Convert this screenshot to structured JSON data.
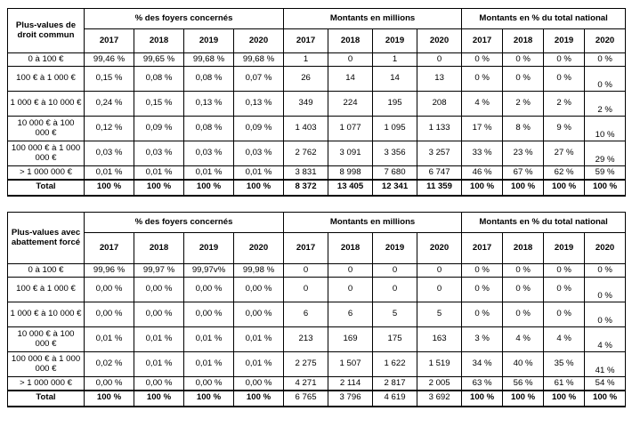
{
  "table1": {
    "corner": "Plus-values de droit commun",
    "groups": [
      "% des foyers concernés",
      "Montants en millions",
      "Montants en % du total national"
    ],
    "years": [
      "2017",
      "2018",
      "2019",
      "2020"
    ],
    "rows": [
      {
        "label": "0 à 100 €",
        "pct": [
          "99,46 %",
          "99,65 %",
          "99,68 %",
          "99,68 %"
        ],
        "mnt": [
          "1",
          "0",
          "1",
          "0"
        ],
        "nat": [
          "0 %",
          "0 %",
          "0 %",
          "0 %"
        ]
      },
      {
        "label": "100 € à 1 000 €",
        "pct": [
          "0,15 %",
          "0,08 %",
          "0,08 %",
          "0,07 %"
        ],
        "mnt": [
          "26",
          "14",
          "14",
          "13"
        ],
        "nat": [
          "0 %",
          "0 %",
          "0 %",
          "0 %"
        ]
      },
      {
        "label": "1 000 € à 10 000 €",
        "pct": [
          "0,24 %",
          "0,15 %",
          "0,13 %",
          "0,13 %"
        ],
        "mnt": [
          "349",
          "224",
          "195",
          "208"
        ],
        "nat": [
          "4 %",
          "2 %",
          "2 %",
          "2 %"
        ]
      },
      {
        "label": "10 000 € à 100 000 €",
        "pct": [
          "0,12 %",
          "0,09 %",
          "0,08 %",
          "0,09 %"
        ],
        "mnt": [
          "1 403",
          "1 077",
          "1 095",
          "1 133"
        ],
        "nat": [
          "17 %",
          "8 %",
          "9 %",
          "10 %"
        ]
      },
      {
        "label": "100 000 € à 1 000 000 €",
        "pct": [
          "0,03 %",
          "0,03 %",
          "0,03 %",
          "0,03 %"
        ],
        "mnt": [
          "2 762",
          "3 091",
          "3 356",
          "3 257"
        ],
        "nat": [
          "33 %",
          "23 %",
          "27 %",
          "29 %"
        ]
      },
      {
        "label": "> 1 000 000 €",
        "pct": [
          "0,01 %",
          "0,01 %",
          "0,01 %",
          "0,01 %"
        ],
        "mnt": [
          "3 831",
          "8 998",
          "7 680",
          "6 747"
        ],
        "nat": [
          "46 %",
          "67 %",
          "62 %",
          "59 %"
        ]
      }
    ],
    "total": {
      "label": "Total",
      "pct": [
        "100 %",
        "100 %",
        "100 %",
        "100 %"
      ],
      "mnt": [
        "8 372",
        "13 405",
        "12 341",
        "11 359"
      ],
      "nat": [
        "100 %",
        "100 %",
        "100 %",
        "100 %"
      ]
    }
  },
  "table2": {
    "corner": "Plus-values avec abattement forcé",
    "groups": [
      "% des foyers concernés",
      "Montants en millions",
      "Montants en % du total national"
    ],
    "years": [
      "2017",
      "2018",
      "2019",
      "2020"
    ],
    "rows": [
      {
        "label": "0 à 100 €",
        "pct": [
          "99,96 %",
          "99,97 %",
          "99,97v%",
          "99,98 %"
        ],
        "mnt": [
          "0",
          "0",
          "0",
          "0"
        ],
        "nat": [
          "0 %",
          "0 %",
          "0 %",
          "0 %"
        ]
      },
      {
        "label": "100 € à 1 000 €",
        "pct": [
          "0,00 %",
          "0,00 %",
          "0,00 %",
          "0,00 %"
        ],
        "mnt": [
          "0",
          "0",
          "0",
          "0"
        ],
        "nat": [
          "0 %",
          "0 %",
          "0 %",
          "0 %"
        ]
      },
      {
        "label": "1 000 € à 10 000 €",
        "pct": [
          "0,00 %",
          "0,00 %",
          "0,00 %",
          "0,00 %"
        ],
        "mnt": [
          "6",
          "6",
          "5",
          "5"
        ],
        "nat": [
          "0 %",
          "0 %",
          "0 %",
          "0 %"
        ]
      },
      {
        "label": "10 000 € à 100 000 €",
        "pct": [
          "0,01 %",
          "0,01 %",
          "0,01 %",
          "0,01 %"
        ],
        "mnt": [
          "213",
          "169",
          "175",
          "163"
        ],
        "nat": [
          "3 %",
          "4 %",
          "4 %",
          "4 %"
        ]
      },
      {
        "label": "100 000 € à 1 000 000 €",
        "pct": [
          "0,02 %",
          "0,01 %",
          "0,01 %",
          "0,01 %"
        ],
        "mnt": [
          "2 275",
          "1 507",
          "1 622",
          "1 519"
        ],
        "nat": [
          "34 %",
          "40 %",
          "35 %",
          "41 %"
        ]
      },
      {
        "label": "> 1 000 000 €",
        "pct": [
          "0,00 %",
          "0,00 %",
          "0,00 %",
          "0,00 %"
        ],
        "mnt": [
          "4 271",
          "2 114",
          "2 817",
          "2 005"
        ],
        "nat": [
          "63 %",
          "56 %",
          "61 %",
          "54 %"
        ]
      }
    ],
    "total": {
      "label": "Total",
      "pct": [
        "100 %",
        "100 %",
        "100 %",
        "100 %"
      ],
      "mnt": [
        "6 765",
        "3 796",
        "4 619",
        "3 692"
      ],
      "nat": [
        "100 %",
        "100 %",
        "100 %",
        "100 %"
      ]
    }
  }
}
